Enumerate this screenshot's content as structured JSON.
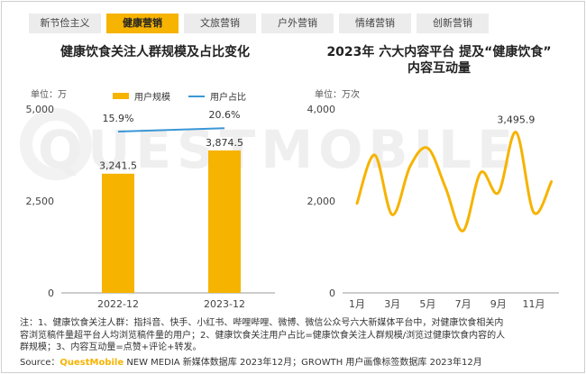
{
  "tabs": [
    {
      "label": "新节俭主义",
      "active": false
    },
    {
      "label": "健康营销",
      "active": true
    },
    {
      "label": "文旅营销",
      "active": false
    },
    {
      "label": "户外营销",
      "active": false
    },
    {
      "label": "情绪营销",
      "active": false
    },
    {
      "label": "创新营销",
      "active": false
    }
  ],
  "watermark": "QUESTMOBILE",
  "left_chart": {
    "title": "健康饮食关注人群规模及占比变化",
    "unit": "单位：万",
    "legend": {
      "bar": "用户规模",
      "line": "用户占比"
    },
    "bar_color": "#f6b300",
    "line_color": "#3b97d6"
  },
  "right_chart": {
    "title_line1": "2023年 六大内容平台 提及“健康饮食”",
    "title_line2": "内容互动量",
    "unit": "单位：万次",
    "line_color": "#f6b300",
    "peak_label": "3,495.9"
  },
  "chart_data": [
    {
      "type": "bar",
      "title": "健康饮食关注人群规模及占比变化",
      "categories": [
        "2022-12",
        "2023-12"
      ],
      "series": [
        {
          "name": "用户规模",
          "values": [
            3241.5,
            3874.5
          ],
          "labels": [
            "3,241.5",
            "3,874.5"
          ],
          "kind": "bar"
        },
        {
          "name": "用户占比",
          "values": [
            15.9,
            20.6
          ],
          "labels": [
            "15.9%",
            "20.6%"
          ],
          "kind": "line"
        }
      ],
      "yticks": [
        "0",
        "2,500",
        "5,000"
      ],
      "ylim": [
        0,
        5000
      ]
    },
    {
      "type": "line",
      "title": "2023年 六大内容平台 提及“健康饮食”内容互动量",
      "x": [
        1,
        2,
        3,
        4,
        5,
        6,
        7,
        8,
        9,
        10,
        11,
        12
      ],
      "xticks": [
        "1月",
        "3月",
        "5月",
        "7月",
        "9月",
        "11月"
      ],
      "values": [
        1950,
        3000,
        1700,
        2750,
        3150,
        2300,
        1350,
        2620,
        2180,
        3495.9,
        1750,
        2420
      ],
      "yticks": [
        "0",
        "2,000",
        "4,000"
      ],
      "ylim": [
        0,
        4000
      ]
    }
  ],
  "notes": [
    "注：1、健康饮食关注人群：指抖音、快手、小红书、哔哩哔哩、微博、微信公众号六大新媒体平台中，对健康饮食相关内",
    "容浏览稿件量超平台人均浏览稿件量的用户；2、健康饮食关注用户占比=健康饮食关注人群规模/浏览过健康饮食内容的人",
    "群规模；3、内容互动量=点赞+评论+转发。"
  ],
  "source": {
    "prefix": "Source：",
    "brand": "QuestMobile",
    "text": "NEW MEDIA 新媒体数据库 2023年12月；GROWTH 用户画像标签数据库 2023年12月"
  }
}
